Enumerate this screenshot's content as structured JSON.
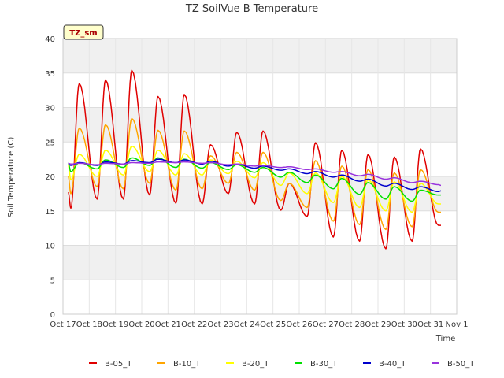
{
  "chart_data": {
    "type": "line",
    "title": "TZ SoilVue B Temperature",
    "xlabel": "Time",
    "ylabel": "Soil Temperature (C)",
    "ylim": [
      0,
      40
    ],
    "yticks": [
      0,
      5,
      10,
      15,
      20,
      25,
      30,
      35,
      40
    ],
    "xlim": [
      0,
      15
    ],
    "xticks": [
      {
        "pos": 0,
        "label": "Oct 17"
      },
      {
        "pos": 1,
        "label": "Oct 18"
      },
      {
        "pos": 2,
        "label": "Oct 19"
      },
      {
        "pos": 3,
        "label": "Oct 20"
      },
      {
        "pos": 4,
        "label": "Oct 21"
      },
      {
        "pos": 5,
        "label": "Oct 22"
      },
      {
        "pos": 6,
        "label": "Oct 23"
      },
      {
        "pos": 7,
        "label": "Oct 24"
      },
      {
        "pos": 8,
        "label": "Oct 25"
      },
      {
        "pos": 9,
        "label": "Oct 26"
      },
      {
        "pos": 10,
        "label": "Oct 27"
      },
      {
        "pos": 11,
        "label": "Oct 28"
      },
      {
        "pos": 12,
        "label": "Oct 29"
      },
      {
        "pos": 13,
        "label": "Oct 30"
      },
      {
        "pos": 14,
        "label": "Oct 31"
      },
      {
        "pos": 15,
        "label": "Nov 1"
      }
    ],
    "annotation": "TZ_sm",
    "legend_position": "bottom",
    "series": [
      {
        "name": "B-05_T",
        "color": "#e00000",
        "daily_min": [
          15.4,
          16.7,
          16.7,
          17.3,
          16.1,
          16.0,
          17.5,
          16.0,
          15.1,
          14.2,
          11.2,
          10.6,
          9.5,
          10.6,
          12.9
        ],
        "daily_max": [
          33.5,
          34.0,
          35.4,
          31.6,
          31.9,
          24.6,
          26.4,
          26.6,
          19.0,
          24.9,
          23.8,
          23.2,
          22.8,
          24.0
        ],
        "start": 17.7,
        "end": 12.9
      },
      {
        "name": "B-10_T",
        "color": "#ffa500",
        "daily_min": [
          17.5,
          18.5,
          18.2,
          19.0,
          18.0,
          18.2,
          19.0,
          18.0,
          16.5,
          15.5,
          13.5,
          13.0,
          12.3,
          12.7,
          14.8
        ],
        "daily_max": [
          27.0,
          27.5,
          28.4,
          26.7,
          26.6,
          23.0,
          23.5,
          23.5,
          19.0,
          22.3,
          21.5,
          21.0,
          20.5,
          21.0
        ],
        "start": 20.0,
        "end": 14.8
      },
      {
        "name": "B-20_T",
        "color": "#ffff00",
        "daily_min": [
          19.5,
          20.0,
          20.2,
          20.7,
          20.2,
          20.2,
          20.4,
          19.8,
          18.7,
          17.5,
          16.2,
          15.5,
          15.0,
          14.8,
          16.0
        ],
        "daily_max": [
          23.2,
          23.8,
          24.4,
          23.8,
          23.3,
          22.4,
          22.2,
          22.0,
          20.5,
          20.5,
          20.0,
          19.5,
          19.2,
          19.0
        ],
        "start": 21.6,
        "end": 16.0
      },
      {
        "name": "B-30_T",
        "color": "#00e000",
        "daily_min": [
          20.7,
          21.1,
          21.3,
          21.6,
          21.3,
          21.2,
          21.0,
          20.6,
          19.9,
          19.1,
          18.2,
          17.4,
          16.7,
          16.4,
          17.3
        ],
        "daily_max": [
          22.0,
          22.4,
          22.7,
          22.7,
          22.5,
          22.0,
          21.7,
          21.3,
          20.6,
          20.2,
          19.7,
          19.1,
          18.5,
          18.0
        ],
        "start": 21.9,
        "end": 17.3
      },
      {
        "name": "B-40_T",
        "color": "#0000cc",
        "daily_min": [
          21.6,
          21.6,
          21.8,
          22.0,
          22.0,
          21.8,
          21.5,
          21.2,
          20.9,
          20.4,
          19.9,
          19.3,
          18.6,
          18.1,
          17.8
        ],
        "daily_max": [
          22.0,
          22.1,
          22.3,
          22.5,
          22.4,
          22.2,
          21.8,
          21.5,
          21.1,
          20.7,
          20.2,
          19.6,
          19.0,
          18.5
        ],
        "start": 21.9,
        "end": 17.9
      },
      {
        "name": "B-50_T",
        "color": "#9933dd",
        "daily_min": [
          21.8,
          21.7,
          21.8,
          21.9,
          22.0,
          21.9,
          21.7,
          21.5,
          21.3,
          21.0,
          20.6,
          20.1,
          19.6,
          19.1,
          18.8
        ],
        "daily_max": [
          21.9,
          21.9,
          22.0,
          22.1,
          22.1,
          22.0,
          21.8,
          21.6,
          21.4,
          21.1,
          20.7,
          20.3,
          19.8,
          19.3
        ],
        "start": 21.9,
        "end": 18.7
      }
    ]
  }
}
